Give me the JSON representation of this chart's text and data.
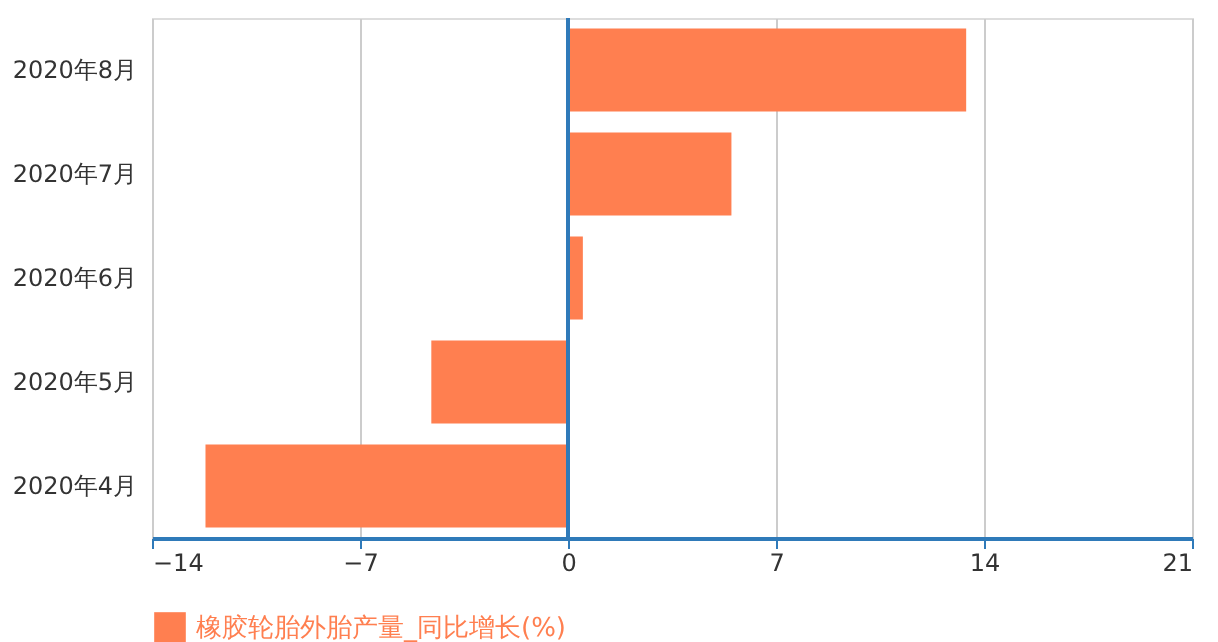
{
  "chart_data": {
    "type": "bar",
    "orientation": "horizontal",
    "categories": [
      "2020年8月",
      "2020年7月",
      "2020年6月",
      "2020年5月",
      "2020年4月"
    ],
    "series": [
      {
        "name": "橡胶轮胎外胎产量_同比增长(%)",
        "color": "#ff7f50",
        "values": [
          13.4,
          5.5,
          0.5,
          -4.6,
          -12.2
        ]
      }
    ],
    "xlim": [
      -14,
      21
    ],
    "xticks": [
      -14,
      -7,
      0,
      7,
      14,
      21
    ],
    "ref_lines": [
      {
        "axis": "x",
        "value": 0,
        "color": "#2f7ab9"
      }
    ],
    "grid": true,
    "legend": "bottom"
  }
}
